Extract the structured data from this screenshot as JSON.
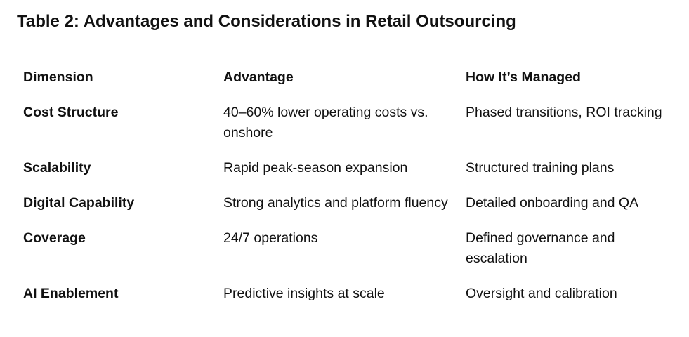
{
  "table": {
    "title": "Table 2: Advantages and Considerations in Retail Outsourcing",
    "headers": [
      "Dimension",
      "Advantage",
      "How It’s Managed"
    ],
    "rows": [
      {
        "dimension": "Cost Structure",
        "advantage": "40–60% lower operating costs vs. onshore",
        "managed": "Phased transitions, ROI tracking"
      },
      {
        "dimension": "Scalability",
        "advantage": "Rapid peak-season expansion",
        "managed": "Structured training plans"
      },
      {
        "dimension": "Digital Capability",
        "advantage": "Strong analytics and platform fluency",
        "managed": "Detailed onboarding and QA"
      },
      {
        "dimension": "Coverage",
        "advantage": "24/7 operations",
        "managed": "Defined governance and escalation"
      },
      {
        "dimension": "AI Enablement",
        "advantage": "Predictive insights at scale",
        "managed": "Oversight and calibration"
      }
    ]
  }
}
